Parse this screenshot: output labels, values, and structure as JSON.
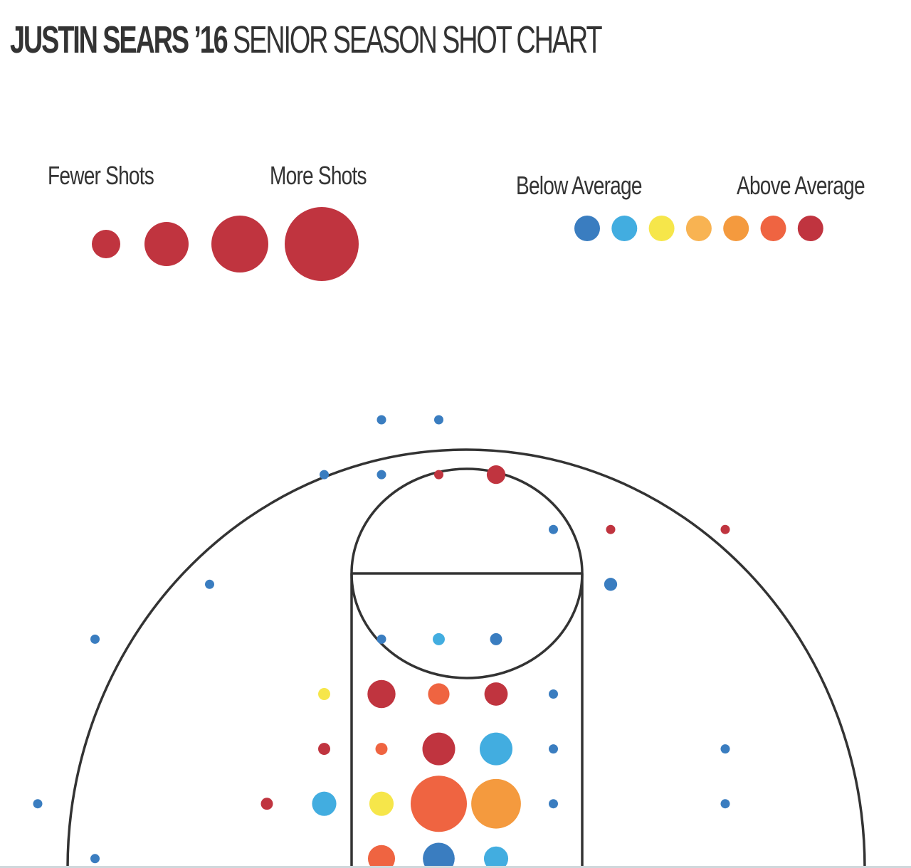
{
  "title": {
    "bold": "JUSTIN SEARS ’16",
    "light": "SENIOR SEASON SHOT CHART"
  },
  "size_legend": {
    "label_low": "Fewer Shots",
    "label_high": "More Shots",
    "color": "#c0343f",
    "steps": [
      1,
      2,
      3,
      4
    ]
  },
  "color_legend": {
    "label_low": "Below Average",
    "label_high": "Above Average",
    "colors": [
      "#3a7dc0",
      "#42ade0",
      "#f6e64a",
      "#f8b352",
      "#f49a3e",
      "#ef6441",
      "#c0343f"
    ]
  },
  "chart_data": {
    "type": "scatter",
    "size_encoding": "number of shots",
    "color_encoding": "shooting percentage relative to average (0 = below, 6 = above)",
    "points": [
      {
        "col": 6,
        "row": 0,
        "size": 0,
        "color": 0
      },
      {
        "col": 7,
        "row": 0,
        "size": 0,
        "color": 0
      },
      {
        "col": 5,
        "row": 1,
        "size": 0,
        "color": 0
      },
      {
        "col": 6,
        "row": 1,
        "size": 0,
        "color": 0
      },
      {
        "col": 7,
        "row": 1,
        "size": 0,
        "color": 6
      },
      {
        "col": 8,
        "row": 1,
        "size": 1,
        "color": 6
      },
      {
        "col": 9,
        "row": 2,
        "size": 0,
        "color": 0
      },
      {
        "col": 10,
        "row": 2,
        "size": 0,
        "color": 6
      },
      {
        "col": 12,
        "row": 2,
        "size": 0,
        "color": 6
      },
      {
        "col": 3,
        "row": 3,
        "size": 0,
        "color": 0
      },
      {
        "col": 10,
        "row": 3,
        "size": 0.4,
        "color": 0
      },
      {
        "col": 1,
        "row": 4,
        "size": 0,
        "color": 0
      },
      {
        "col": 6,
        "row": 4,
        "size": 0,
        "color": 0
      },
      {
        "col": 7,
        "row": 4,
        "size": 0.3,
        "color": 1
      },
      {
        "col": 8,
        "row": 4,
        "size": 0.3,
        "color": 0
      },
      {
        "col": 5,
        "row": 5,
        "size": 0.3,
        "color": 2
      },
      {
        "col": 6,
        "row": 5,
        "size": 2,
        "color": 6
      },
      {
        "col": 7,
        "row": 5,
        "size": 1.3,
        "color": 5
      },
      {
        "col": 8,
        "row": 5,
        "size": 1.5,
        "color": 6
      },
      {
        "col": 9,
        "row": 5,
        "size": 0,
        "color": 0
      },
      {
        "col": 5,
        "row": 6,
        "size": 0.3,
        "color": 6
      },
      {
        "col": 6,
        "row": 6,
        "size": 0.3,
        "color": 5
      },
      {
        "col": 7,
        "row": 6,
        "size": 2.5,
        "color": 6
      },
      {
        "col": 8,
        "row": 6,
        "size": 2.5,
        "color": 1
      },
      {
        "col": 9,
        "row": 6,
        "size": 0,
        "color": 0
      },
      {
        "col": 12,
        "row": 6,
        "size": 0,
        "color": 0
      },
      {
        "col": 0,
        "row": 7,
        "size": 0,
        "color": 0
      },
      {
        "col": 4,
        "row": 7,
        "size": 0.3,
        "color": 6
      },
      {
        "col": 5,
        "row": 7,
        "size": 1.6,
        "color": 1
      },
      {
        "col": 6,
        "row": 7,
        "size": 1.6,
        "color": 2
      },
      {
        "col": 7,
        "row": 7,
        "size": 5,
        "color": 5
      },
      {
        "col": 8,
        "row": 7,
        "size": 4.3,
        "color": 4
      },
      {
        "col": 9,
        "row": 7,
        "size": 0,
        "color": 0
      },
      {
        "col": 12,
        "row": 7,
        "size": 0,
        "color": 0
      },
      {
        "col": 1,
        "row": 8,
        "size": 0,
        "color": 0
      },
      {
        "col": 6,
        "row": 8,
        "size": 1.9,
        "color": 5
      },
      {
        "col": 7,
        "row": 8,
        "size": 2.4,
        "color": 0
      },
      {
        "col": 8,
        "row": 8,
        "size": 1.6,
        "color": 1
      }
    ]
  }
}
